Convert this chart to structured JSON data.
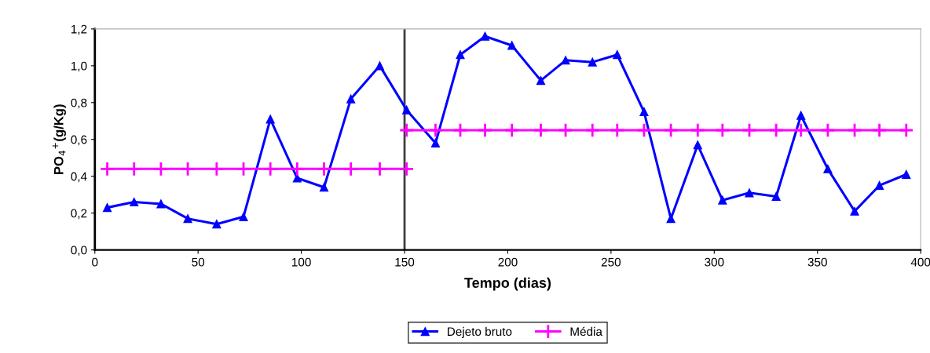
{
  "chart_data": {
    "type": "line",
    "xlabel": "Tempo (dias)",
    "ylabel": "PO$_{4}$$^{+}$(g/Kg)",
    "series": [
      {
        "name": "Dejeto bruto",
        "color": "#0000ff",
        "marker": "triangle",
        "x": [
          6,
          19,
          32,
          45,
          59,
          72,
          85,
          98,
          111,
          124,
          138,
          151,
          165,
          177,
          189,
          202,
          216,
          228,
          241,
          253,
          266,
          279,
          292,
          304,
          317,
          330,
          342,
          355,
          368,
          380,
          393
        ],
        "values": [
          0.23,
          0.26,
          0.25,
          0.17,
          0.14,
          0.18,
          0.71,
          0.39,
          0.34,
          0.82,
          1.0,
          0.76,
          0.58,
          1.06,
          1.16,
          1.11,
          0.92,
          1.03,
          1.02,
          1.06,
          0.75,
          0.17,
          0.57,
          0.27,
          0.31,
          0.29,
          0.73,
          0.44,
          0.21,
          0.35,
          0.41
        ]
      },
      {
        "name": "Média",
        "color": "#ff00ff",
        "marker": "cross",
        "x": [
          6,
          19,
          32,
          45,
          59,
          72,
          85,
          98,
          111,
          124,
          138,
          151
        ],
        "values": [
          0.44,
          0.44,
          0.44,
          0.44,
          0.44,
          0.44,
          0.44,
          0.44,
          0.44,
          0.44,
          0.44,
          0.44
        ]
      },
      {
        "color": "#ff00ff",
        "marker": "cross",
        "x": [
          151,
          165,
          177,
          189,
          202,
          216,
          228,
          241,
          253,
          266,
          279,
          292,
          304,
          317,
          330,
          342,
          355,
          368,
          380,
          393
        ],
        "values": [
          0.65,
          0.65,
          0.65,
          0.65,
          0.65,
          0.65,
          0.65,
          0.65,
          0.65,
          0.65,
          0.65,
          0.65,
          0.65,
          0.65,
          0.65,
          0.65,
          0.65,
          0.65,
          0.65,
          0.65
        ]
      }
    ],
    "xlim": [
      0,
      400
    ],
    "xticks": [
      0,
      50,
      100,
      150,
      200,
      250,
      300,
      350,
      400
    ],
    "ylim": [
      0,
      1.2
    ],
    "yticks": [
      {
        "value": 0,
        "label": "0,0"
      },
      {
        "value": 0.2,
        "label": "0,2"
      },
      {
        "value": 0.4,
        "label": "0,4"
      },
      {
        "value": 0.6,
        "label": "0,6"
      },
      {
        "value": 0.8,
        "label": "0,8"
      },
      {
        "value": 1.0,
        "label": "1,0"
      },
      {
        "value": 1.2,
        "label": "1,2"
      }
    ],
    "ref_lines": [
      {
        "axis": "x",
        "value": 150,
        "color": "#404040"
      }
    ],
    "legend": "bottom",
    "grid": false
  }
}
